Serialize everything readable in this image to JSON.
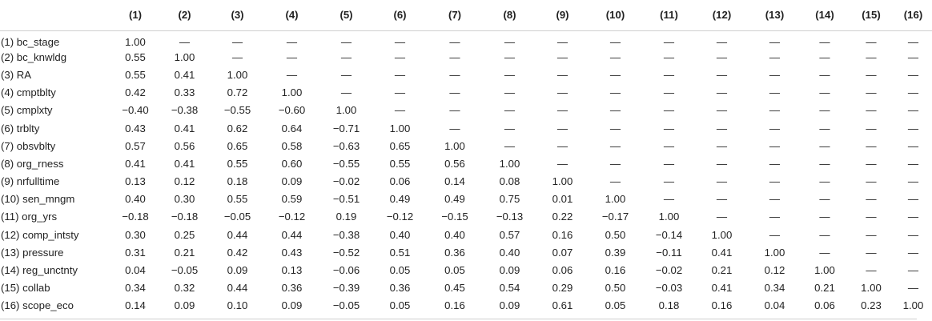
{
  "table": {
    "headers": [
      "",
      "(1)",
      "(2)",
      "(3)",
      "(4)",
      "(5)",
      "(6)",
      "(7)",
      "(8)",
      "(9)",
      "(10)",
      "(11)",
      "(12)",
      "(13)",
      "(14)",
      "(15)",
      "(16)"
    ],
    "rows": [
      [
        "(1) bc_stage",
        "1.00",
        "—",
        "—",
        "—",
        "—",
        "—",
        "—",
        "—",
        "—",
        "—",
        "—",
        "—",
        "—",
        "—",
        "—",
        "—"
      ],
      [
        "(2) bc_knwldg",
        "0.55",
        "1.00",
        "—",
        "—",
        "—",
        "—",
        "—",
        "—",
        "—",
        "—",
        "—",
        "—",
        "—",
        "—",
        "—",
        "—"
      ],
      [
        "(3) RA",
        "0.55",
        "0.41",
        "1.00",
        "—",
        "—",
        "—",
        "—",
        "—",
        "—",
        "—",
        "—",
        "—",
        "—",
        "—",
        "—",
        "—"
      ],
      [
        "(4) cmptblty",
        "0.42",
        "0.33",
        "0.72",
        "1.00",
        "—",
        "—",
        "—",
        "—",
        "—",
        "—",
        "—",
        "—",
        "—",
        "—",
        "—",
        "—"
      ],
      [
        "(5) cmplxty",
        "−0.40",
        "−0.38",
        "−0.55",
        "−0.60",
        "1.00",
        "—",
        "—",
        "—",
        "—",
        "—",
        "—",
        "—",
        "—",
        "—",
        "—",
        "—"
      ],
      [
        "(6) trblty",
        "0.43",
        "0.41",
        "0.62",
        "0.64",
        "−0.71",
        "1.00",
        "—",
        "—",
        "—",
        "—",
        "—",
        "—",
        "—",
        "—",
        "—",
        "—"
      ],
      [
        "(7) obsvblty",
        "0.57",
        "0.56",
        "0.65",
        "0.58",
        "−0.63",
        "0.65",
        "1.00",
        "—",
        "—",
        "—",
        "—",
        "—",
        "—",
        "—",
        "—",
        "—"
      ],
      [
        "(8) org_rness",
        "0.41",
        "0.41",
        "0.55",
        "0.60",
        "−0.55",
        "0.55",
        "0.56",
        "1.00",
        "—",
        "—",
        "—",
        "—",
        "—",
        "—",
        "—",
        "—"
      ],
      [
        "(9) nrfulltime",
        "0.13",
        "0.12",
        "0.18",
        "0.09",
        "−0.02",
        "0.06",
        "0.14",
        "0.08",
        "1.00",
        "—",
        "—",
        "—",
        "—",
        "—",
        "—",
        "—"
      ],
      [
        "(10) sen_mngm",
        "0.40",
        "0.30",
        "0.55",
        "0.59",
        "−0.51",
        "0.49",
        "0.49",
        "0.75",
        "0.01",
        "1.00",
        "—",
        "—",
        "—",
        "—",
        "—",
        "—"
      ],
      [
        "(11) org_yrs",
        "−0.18",
        "−0.18",
        "−0.05",
        "−0.12",
        "0.19",
        "−0.12",
        "−0.15",
        "−0.13",
        "0.22",
        "−0.17",
        "1.00",
        "—",
        "—",
        "—",
        "—",
        "—"
      ],
      [
        "(12) comp_intsty",
        "0.30",
        "0.25",
        "0.44",
        "0.44",
        "−0.38",
        "0.40",
        "0.40",
        "0.57",
        "0.16",
        "0.50",
        "−0.14",
        "1.00",
        "—",
        "—",
        "—",
        "—"
      ],
      [
        "(13) pressure",
        "0.31",
        "0.21",
        "0.42",
        "0.43",
        "−0.52",
        "0.51",
        "0.36",
        "0.40",
        "0.07",
        "0.39",
        "−0.11",
        "0.41",
        "1.00",
        "—",
        "—",
        "—"
      ],
      [
        "(14) reg_unctnty",
        "0.04",
        "−0.05",
        "0.09",
        "0.13",
        "−0.06",
        "0.05",
        "0.05",
        "0.09",
        "0.06",
        "0.16",
        "−0.02",
        "0.21",
        "0.12",
        "1.00",
        "—",
        "—"
      ],
      [
        "(15) collab",
        "0.34",
        "0.32",
        "0.44",
        "0.36",
        "−0.39",
        "0.36",
        "0.45",
        "0.54",
        "0.29",
        "0.50",
        "−0.03",
        "0.41",
        "0.34",
        "0.21",
        "1.00",
        "—"
      ],
      [
        "(16) scope_eco",
        "0.14",
        "0.09",
        "0.10",
        "0.09",
        "−0.05",
        "0.05",
        "0.16",
        "0.09",
        "0.61",
        "0.05",
        "0.18",
        "0.16",
        "0.04",
        "0.06",
        "0.23",
        "1.00"
      ]
    ]
  }
}
